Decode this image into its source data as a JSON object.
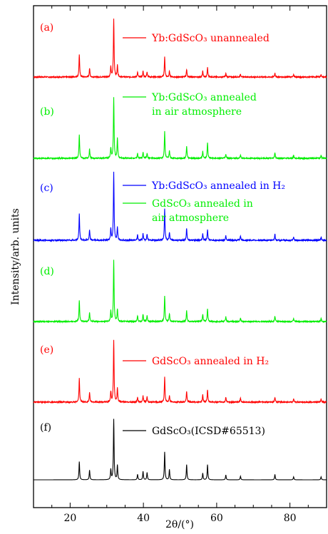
{
  "chart_data": {
    "type": "line",
    "xlabel": "2θ/(°)",
    "ylabel": "Intensity/arb. units",
    "xlim": [
      10,
      90
    ],
    "xticks": [
      20,
      40,
      60,
      80
    ],
    "y_ticks_shown": false,
    "layout": "stacked-offset",
    "series": [
      {
        "id": "a",
        "panel_label": "(a)",
        "name_lines": [
          "Yb:GdScO₃ unannealed"
        ],
        "color": "#ff0000",
        "peaks": [
          [
            22.5,
            0.39
          ],
          [
            25.3,
            0.15
          ],
          [
            31.1,
            0.17
          ],
          [
            31.9,
            1.0
          ],
          [
            32.9,
            0.2
          ],
          [
            38.4,
            0.08
          ],
          [
            39.9,
            0.1
          ],
          [
            41.0,
            0.09
          ],
          [
            45.8,
            0.34
          ],
          [
            47.1,
            0.1
          ],
          [
            51.8,
            0.13
          ],
          [
            56.2,
            0.1
          ],
          [
            57.5,
            0.16
          ],
          [
            62.5,
            0.06
          ],
          [
            66.5,
            0.05
          ],
          [
            75.9,
            0.07
          ],
          [
            81.0,
            0.04
          ],
          [
            88.5,
            0.04
          ]
        ]
      },
      {
        "id": "b",
        "panel_label": "(b)",
        "name_lines": [
          "Yb:GdScO₃ annealed",
          "in air atmosphere"
        ],
        "color": "#00ee00",
        "peaks": [
          [
            22.5,
            0.39
          ],
          [
            25.3,
            0.15
          ],
          [
            31.1,
            0.17
          ],
          [
            31.9,
            1.0
          ],
          [
            32.9,
            0.33
          ],
          [
            38.4,
            0.08
          ],
          [
            39.9,
            0.1
          ],
          [
            41.0,
            0.09
          ],
          [
            45.8,
            0.44
          ],
          [
            47.1,
            0.13
          ],
          [
            51.8,
            0.2
          ],
          [
            56.2,
            0.12
          ],
          [
            57.5,
            0.26
          ],
          [
            62.5,
            0.07
          ],
          [
            66.5,
            0.06
          ],
          [
            75.9,
            0.1
          ],
          [
            81.0,
            0.05
          ],
          [
            88.5,
            0.05
          ]
        ]
      },
      {
        "id": "c",
        "panel_label": "(c)",
        "name_lines": [
          "Yb:GdScO₃ annealed in H₂"
        ],
        "color": "#0000ff",
        "peaks": [
          [
            22.5,
            0.39
          ],
          [
            25.3,
            0.15
          ],
          [
            31.1,
            0.17
          ],
          [
            31.9,
            1.0
          ],
          [
            32.9,
            0.2
          ],
          [
            38.4,
            0.08
          ],
          [
            39.9,
            0.1
          ],
          [
            41.0,
            0.09
          ],
          [
            45.8,
            0.46
          ],
          [
            47.1,
            0.12
          ],
          [
            51.8,
            0.18
          ],
          [
            56.2,
            0.1
          ],
          [
            57.5,
            0.16
          ],
          [
            62.5,
            0.07
          ],
          [
            66.5,
            0.07
          ],
          [
            75.9,
            0.09
          ],
          [
            81.0,
            0.05
          ],
          [
            88.5,
            0.05
          ]
        ]
      },
      {
        "id": "d",
        "panel_label": "(d)",
        "name_lines": [
          "GdScO₃ annealed in",
          "air atmosphere"
        ],
        "color": "#00ee00",
        "peaks": [
          [
            22.5,
            0.35
          ],
          [
            25.3,
            0.15
          ],
          [
            31.1,
            0.17
          ],
          [
            31.9,
            1.0
          ],
          [
            32.9,
            0.2
          ],
          [
            38.4,
            0.09
          ],
          [
            39.9,
            0.12
          ],
          [
            41.0,
            0.1
          ],
          [
            45.8,
            0.42
          ],
          [
            47.1,
            0.13
          ],
          [
            51.8,
            0.18
          ],
          [
            56.2,
            0.12
          ],
          [
            57.5,
            0.21
          ],
          [
            62.5,
            0.08
          ],
          [
            66.5,
            0.06
          ],
          [
            75.9,
            0.09
          ],
          [
            81.0,
            0.05
          ],
          [
            88.5,
            0.05
          ]
        ]
      },
      {
        "id": "e",
        "panel_label": "(e)",
        "name_lines": [
          "GdScO₃ annealed in H₂"
        ],
        "color": "#ff0000",
        "peaks": [
          [
            22.5,
            0.38
          ],
          [
            25.3,
            0.15
          ],
          [
            31.1,
            0.17
          ],
          [
            31.9,
            1.0
          ],
          [
            32.9,
            0.22
          ],
          [
            38.4,
            0.08
          ],
          [
            39.9,
            0.1
          ],
          [
            41.0,
            0.09
          ],
          [
            45.8,
            0.4
          ],
          [
            47.1,
            0.1
          ],
          [
            51.8,
            0.18
          ],
          [
            56.2,
            0.12
          ],
          [
            57.5,
            0.2
          ],
          [
            62.5,
            0.08
          ],
          [
            66.5,
            0.06
          ],
          [
            75.9,
            0.08
          ],
          [
            81.0,
            0.05
          ],
          [
            88.5,
            0.05
          ]
        ]
      },
      {
        "id": "f",
        "panel_label": "(f)",
        "name_lines": [
          "GdScO₃(ICSD#65513)"
        ],
        "color": "#000000",
        "peaks": [
          [
            22.5,
            0.3
          ],
          [
            25.3,
            0.16
          ],
          [
            31.1,
            0.17
          ],
          [
            31.9,
            1.0
          ],
          [
            32.9,
            0.24
          ],
          [
            38.4,
            0.09
          ],
          [
            39.9,
            0.14
          ],
          [
            41.0,
            0.12
          ],
          [
            45.8,
            0.46
          ],
          [
            47.1,
            0.17
          ],
          [
            51.8,
            0.25
          ],
          [
            56.2,
            0.11
          ],
          [
            57.5,
            0.25
          ],
          [
            62.5,
            0.08
          ],
          [
            66.5,
            0.06
          ],
          [
            75.9,
            0.09
          ],
          [
            81.0,
            0.05
          ],
          [
            88.5,
            0.05
          ]
        ]
      }
    ]
  }
}
